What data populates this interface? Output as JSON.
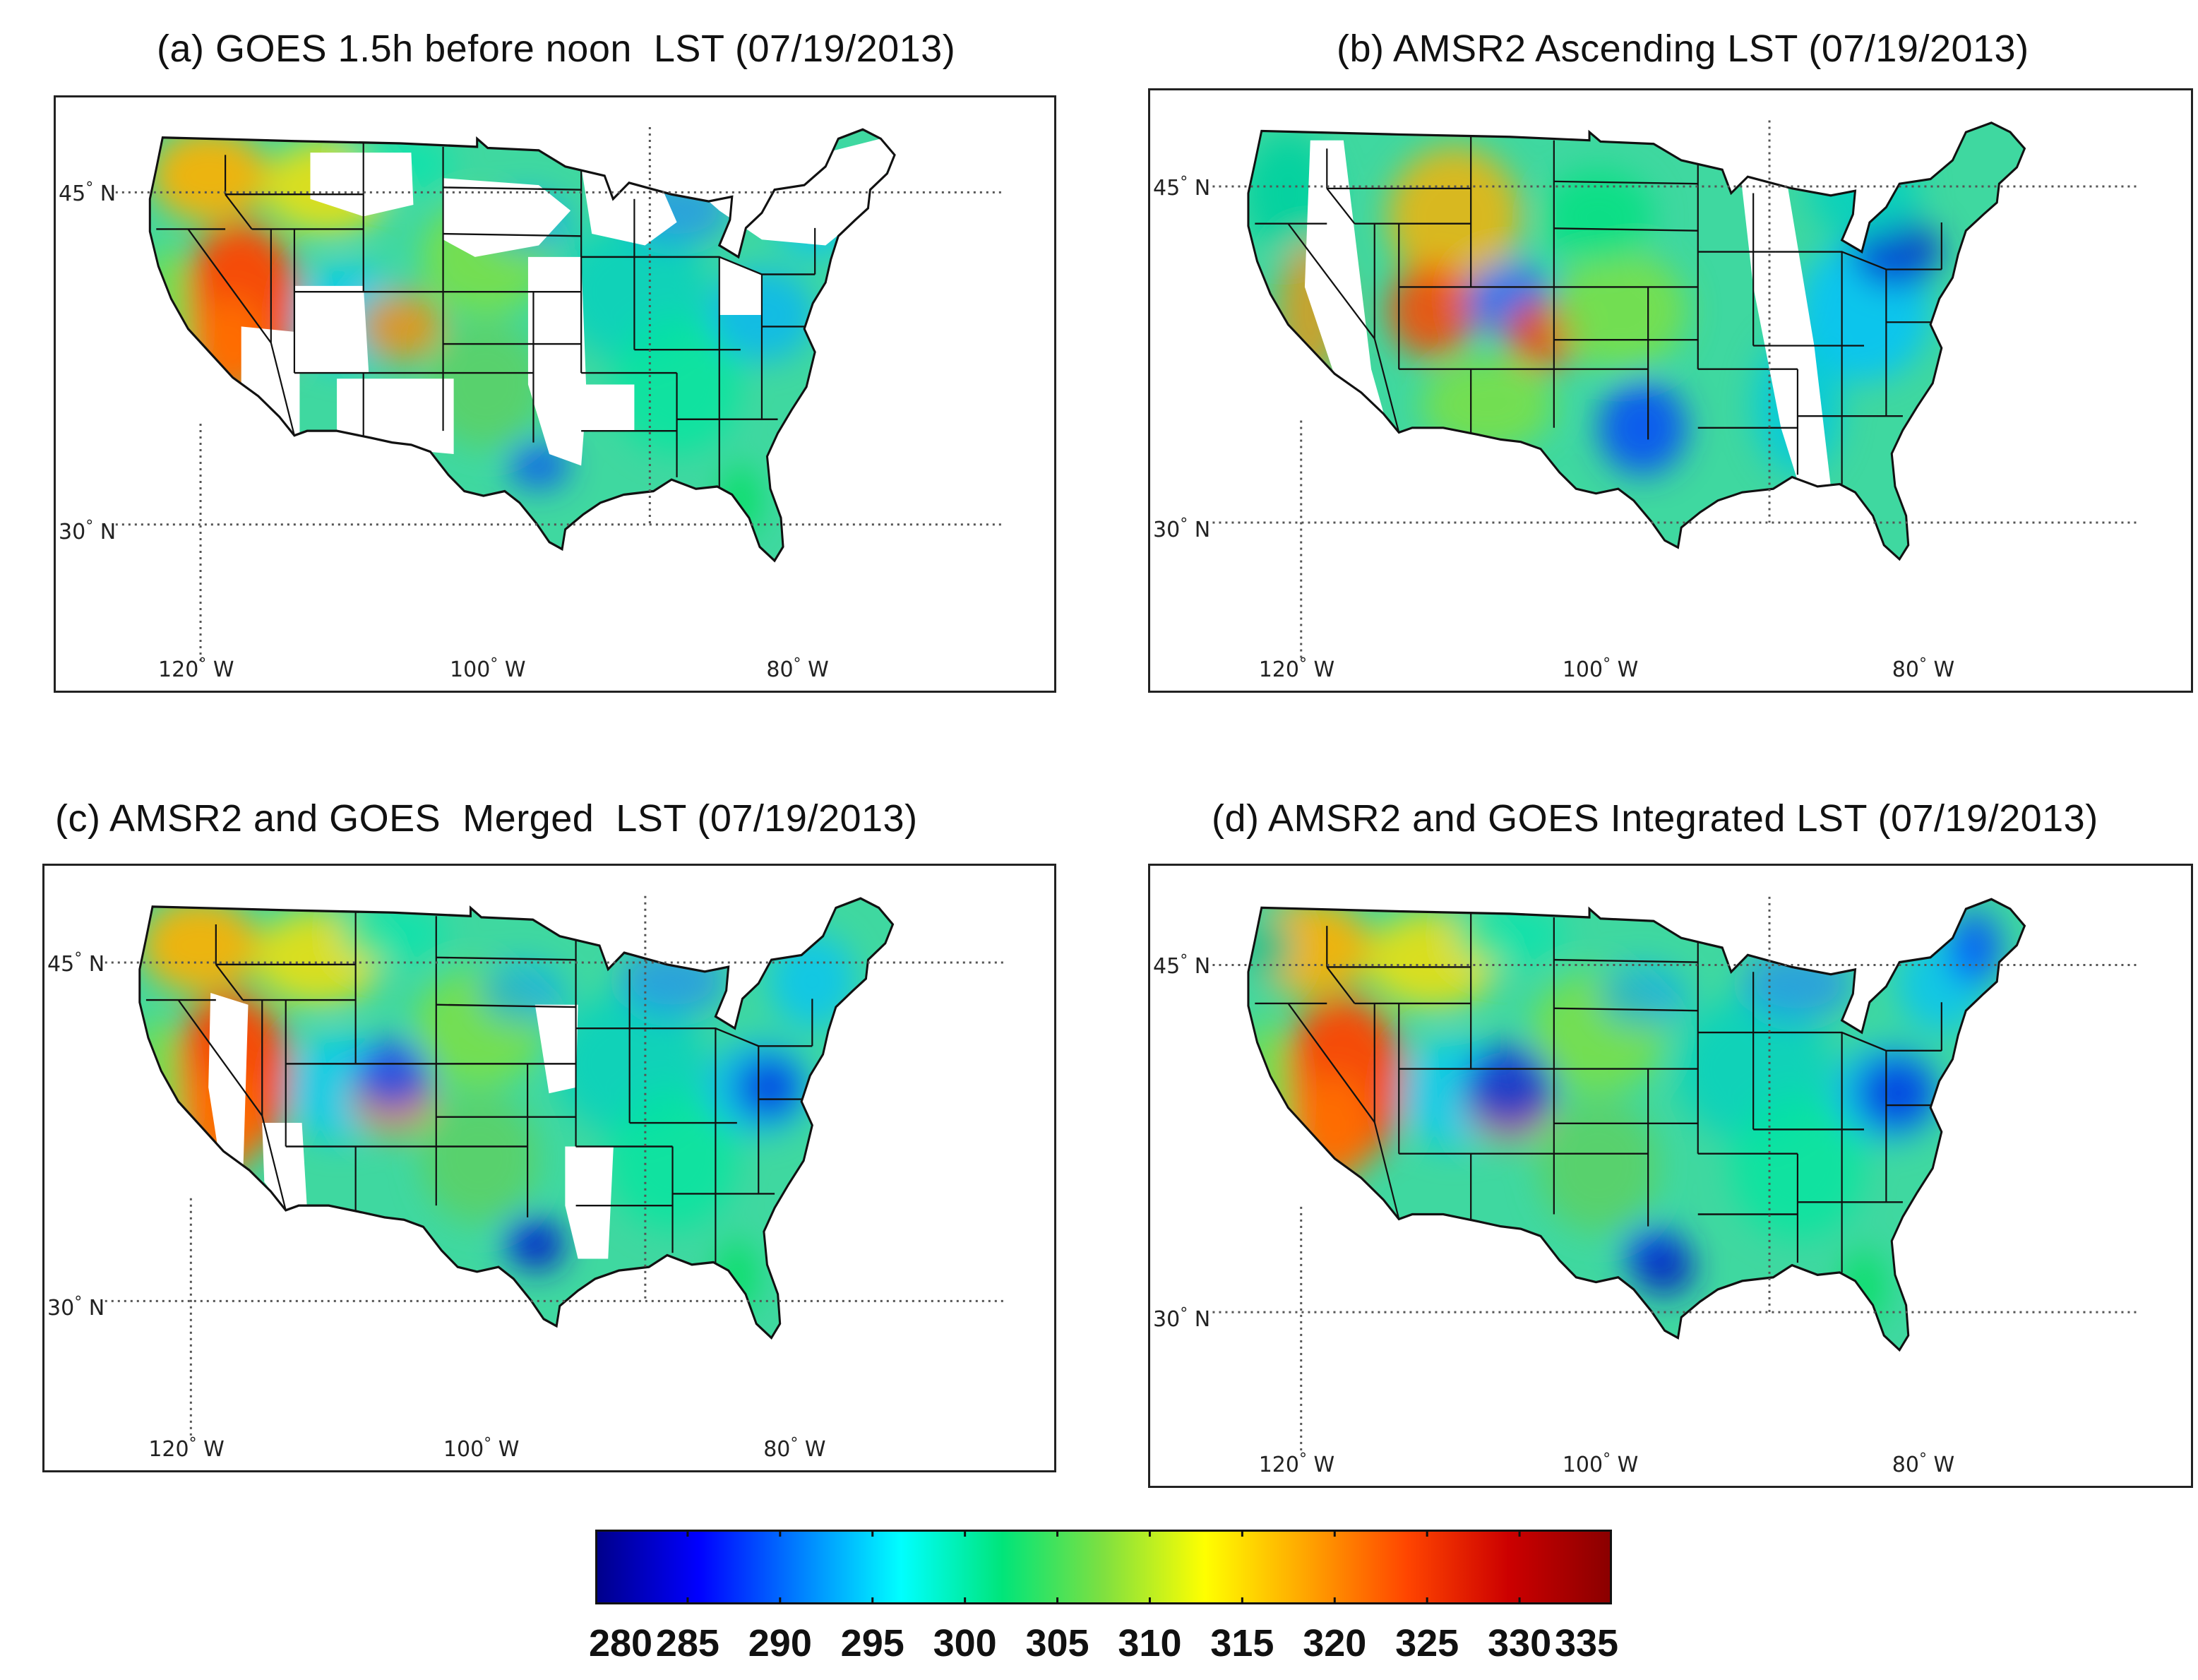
{
  "panels": [
    {
      "id": "a",
      "title": "(a) GOES 1.5h before noon  LST (07/19/2013)",
      "variant": "goes"
    },
    {
      "id": "b",
      "title": "(b) AMSR2 Ascending LST (07/19/2013)",
      "variant": "amsr2"
    },
    {
      "id": "c",
      "title": "(c) AMSR2 and GOES  Merged  LST (07/19/2013)",
      "variant": "merged"
    },
    {
      "id": "d",
      "title": "(d) AMSR2 and GOES Integrated LST (07/19/2013)",
      "variant": "integrated"
    }
  ],
  "axes": {
    "lat45": "45",
    "lat30": "30",
    "lat_hemi": "N",
    "lon120": "120",
    "lon100": "100",
    "lon80": "80",
    "lon_hemi": "W",
    "degree": "°"
  },
  "colorbar": {
    "ticks": [
      "280",
      "285",
      "290",
      "295",
      "300",
      "305",
      "310",
      "315",
      "320",
      "325",
      "330",
      "335"
    ],
    "min": 280,
    "max": 335,
    "stops": [
      "#00008b",
      "#0000ff",
      "#0080ff",
      "#00ffff",
      "#00e57a",
      "#7fe040",
      "#ffff00",
      "#ffa500",
      "#ff4500",
      "#cc0000",
      "#8b0000"
    ]
  },
  "chart_data": {
    "type": "heatmap",
    "variable": "LST",
    "date": "07/19/2013",
    "units_range": [
      280,
      335
    ],
    "panels": [
      "(a) GOES 1.5h before noon  LST (07/19/2013)",
      "(b) AMSR2 Ascending LST (07/19/2013)",
      "(c) AMSR2 and GOES  Merged  LST (07/19/2013)",
      "(d) AMSR2 and GOES Integrated LST (07/19/2013)"
    ],
    "lat_ticks": [
      "45 N",
      "30 N"
    ],
    "lon_ticks": [
      "120 W",
      "100 W",
      "80 W"
    ]
  }
}
